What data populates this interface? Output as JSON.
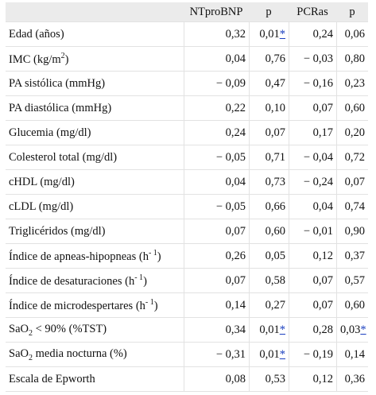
{
  "columns": [
    "",
    "NTproBNP",
    "p",
    "PCRas",
    "p"
  ],
  "rows": [
    {
      "label": "Edad (años)",
      "ntprobnp": "0,32",
      "p1": "0,01",
      "p1_sig": "*",
      "pcras": "0,24",
      "p2": "0,06",
      "p2_sig": ""
    },
    {
      "label_pre": "IMC (kg/m",
      "label_sup": "2",
      "label_post": ")",
      "ntprobnp": "0,04",
      "p1": "0,76",
      "p1_sig": "",
      "pcras": "− 0,03",
      "p2": "0,80",
      "p2_sig": ""
    },
    {
      "label": "PA sistólica (mmHg)",
      "ntprobnp": "− 0,09",
      "p1": "0,47",
      "p1_sig": "",
      "pcras": "− 0,16",
      "p2": "0,23",
      "p2_sig": ""
    },
    {
      "label": "PA diastólica (mmHg)",
      "ntprobnp": "0,22",
      "p1": "0,10",
      "p1_sig": "",
      "pcras": "0,07",
      "p2": "0,60",
      "p2_sig": ""
    },
    {
      "label": "Glucemia (mg/dl)",
      "ntprobnp": "0,24",
      "p1": "0,07",
      "p1_sig": "",
      "pcras": "0,17",
      "p2": "0,20",
      "p2_sig": ""
    },
    {
      "label": "Colesterol total (mg/dl)",
      "ntprobnp": "− 0,05",
      "p1": "0,71",
      "p1_sig": "",
      "pcras": "− 0,04",
      "p2": "0,72",
      "p2_sig": ""
    },
    {
      "label": "cHDL (mg/dl)",
      "ntprobnp": "0,04",
      "p1": "0,73",
      "p1_sig": "",
      "pcras": "− 0,24",
      "p2": "0,07",
      "p2_sig": ""
    },
    {
      "label": "cLDL (mg/dl)",
      "ntprobnp": "− 0,05",
      "p1": "0,66",
      "p1_sig": "",
      "pcras": "0,04",
      "p2": "0,74",
      "p2_sig": ""
    },
    {
      "label": "Triglicéridos (mg/dl)",
      "ntprobnp": "0,07",
      "p1": "0,60",
      "p1_sig": "",
      "pcras": "− 0,01",
      "p2": "0,90",
      "p2_sig": ""
    },
    {
      "label_pre": "Índice de apneas-hipopneas (h",
      "label_sup": "- 1",
      "label_post": ")",
      "ntprobnp": "0,26",
      "p1": "0,05",
      "p1_sig": "",
      "pcras": "0,12",
      "p2": "0,37",
      "p2_sig": ""
    },
    {
      "label_pre": "Índice de desaturaciones (h",
      "label_sup": "- 1",
      "label_post": ")",
      "ntprobnp": "0,07",
      "p1": "0,58",
      "p1_sig": "",
      "pcras": "0,07",
      "p2": "0,57",
      "p2_sig": ""
    },
    {
      "label_pre": "Índice de microdespertares (h",
      "label_sup": "- 1",
      "label_post": ")",
      "ntprobnp": "0,14",
      "p1": "0,27",
      "p1_sig": "",
      "pcras": "0,07",
      "p2": "0,60",
      "p2_sig": ""
    },
    {
      "label_pre": "SaO",
      "label_sub": "2",
      "label_post": " < 90% (%TST)",
      "ntprobnp": "0,34",
      "p1": "0,01",
      "p1_sig": "*",
      "pcras": "0,28",
      "p2": "0,03",
      "p2_sig": "*"
    },
    {
      "label_pre": "SaO",
      "label_sub": "2",
      "label_post": " media nocturna (%)",
      "ntprobnp": "− 0,31",
      "p1": "0,01",
      "p1_sig": "*",
      "pcras": "− 0,19",
      "p2": "0,14",
      "p2_sig": ""
    },
    {
      "label": "Escala de Epworth",
      "ntprobnp": "0,08",
      "p1": "0,53",
      "p1_sig": "",
      "pcras": "0,12",
      "p2": "0,36",
      "p2_sig": ""
    }
  ]
}
